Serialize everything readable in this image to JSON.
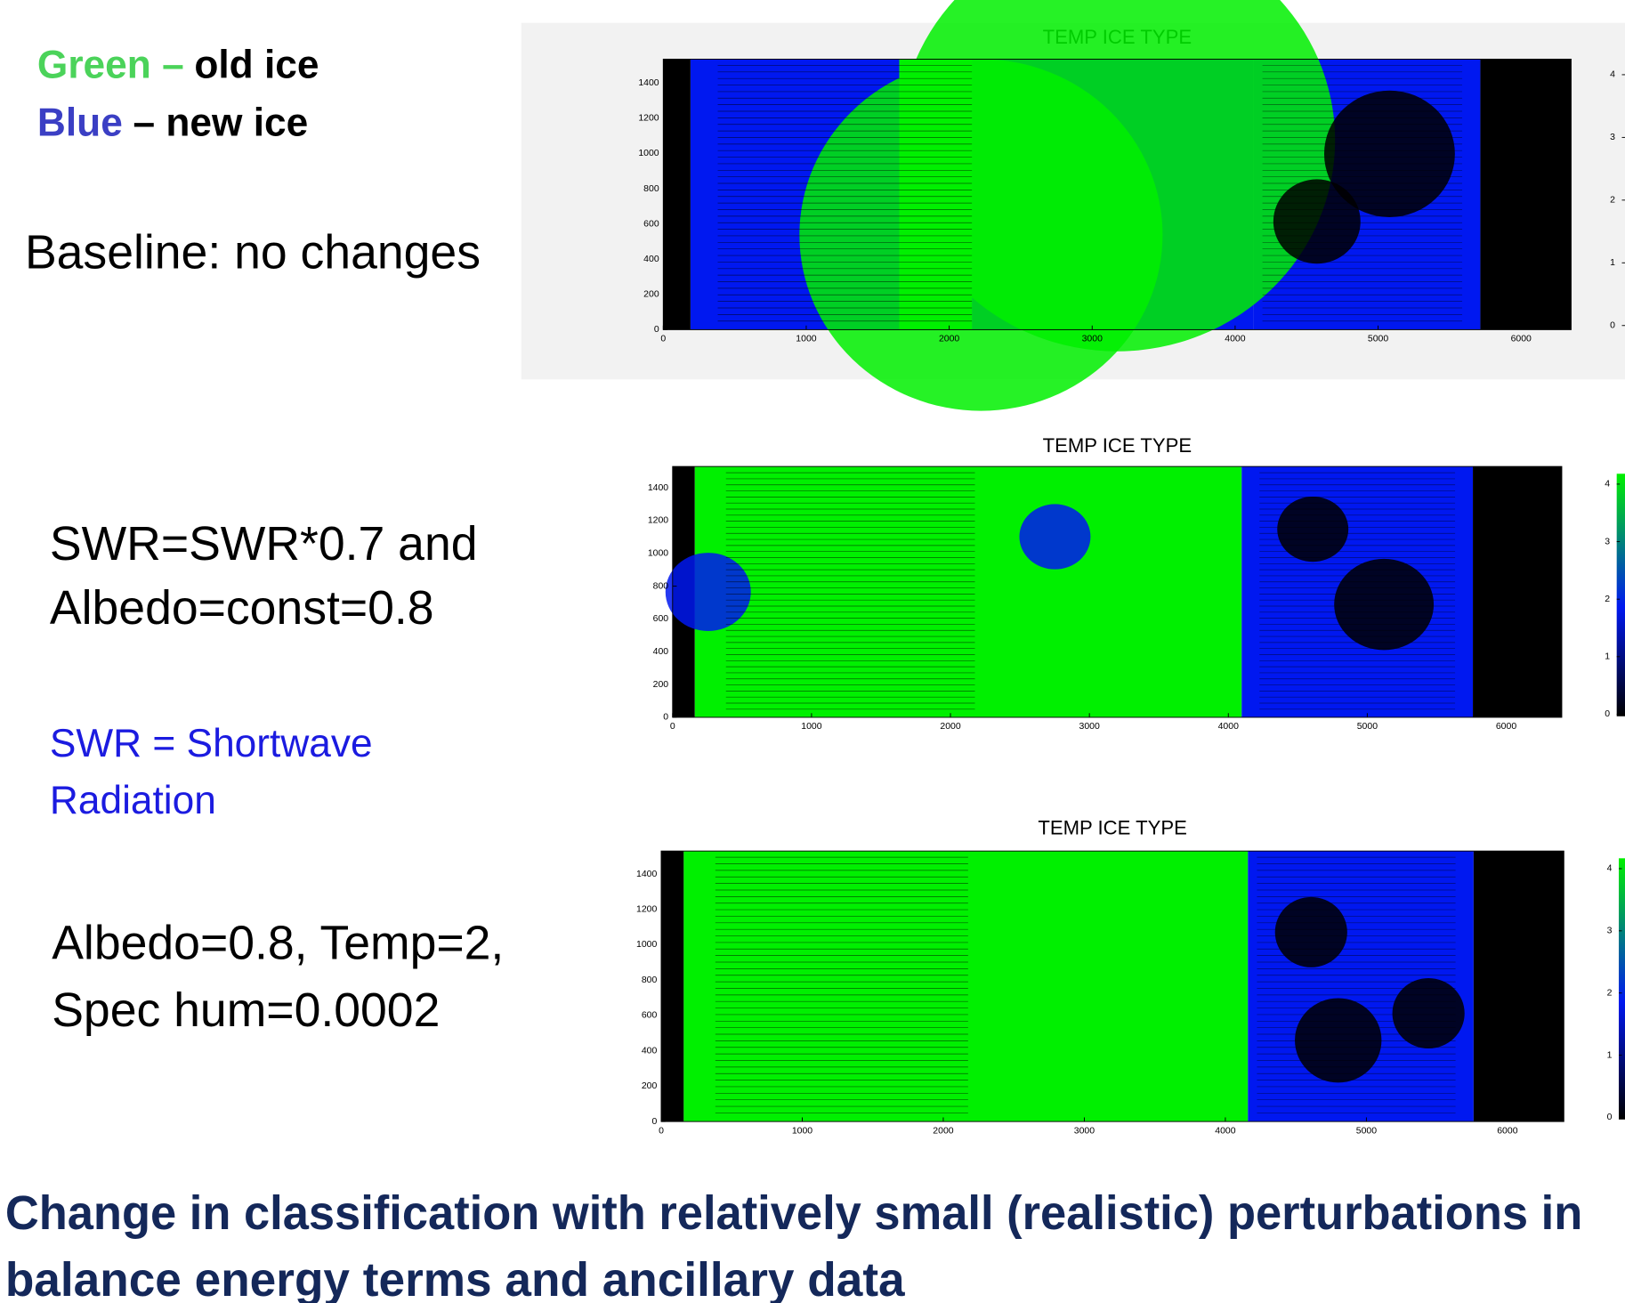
{
  "legend": {
    "green_label": "Green –",
    "green_text": "old ice",
    "blue_label": "Blue",
    "blue_text": "– new ice"
  },
  "captions": {
    "baseline": "Baseline: no changes",
    "swr_line1": "SWR=SWR*0.7 and",
    "swr_line2": "Albedo=const=0.8",
    "swr_note_line1": "SWR = Shortwave",
    "swr_note_line2": "Radiation",
    "albedo_line1": "Albedo=0.8, Temp=2,",
    "albedo_line2": "Spec hum=0.0002"
  },
  "conclusion": {
    "line1": "Change in classification with relatively small (realistic) perturbations in",
    "line2": "balance energy terms and  ancillary data"
  },
  "panels": [
    {
      "title": "TEMP ICE TYPE",
      "xlim": [
        0,
        6350
      ],
      "xticks": [
        0,
        1000,
        2000,
        3000,
        4000,
        5000,
        6000
      ],
      "ylim": [
        0,
        1535
      ],
      "yticks": [
        0,
        200,
        400,
        600,
        800,
        1000,
        1200,
        1400
      ],
      "colorbar_lim": [
        0,
        4
      ],
      "colorbar_ticks": [
        0,
        1,
        2,
        3,
        4
      ]
    },
    {
      "title": "TEMP ICE TYPE",
      "xlim": [
        0,
        6400
      ],
      "xticks": [
        0,
        1000,
        2000,
        3000,
        4000,
        5000,
        6000
      ],
      "ylim": [
        0,
        1530
      ],
      "yticks": [
        0,
        200,
        400,
        600,
        800,
        1000,
        1200,
        1400
      ],
      "colorbar_lim": [
        0,
        4
      ],
      "colorbar_ticks": [
        0,
        1,
        2,
        3,
        4
      ]
    },
    {
      "title": "TEMP ICE TYPE",
      "xlim": [
        0,
        6400
      ],
      "xticks": [
        0,
        1000,
        2000,
        3000,
        4000,
        5000,
        6000
      ],
      "ylim": [
        0,
        1530
      ],
      "yticks": [
        0,
        200,
        400,
        600,
        800,
        1000,
        1200,
        1400
      ],
      "colorbar_lim": [
        0,
        4
      ],
      "colorbar_ticks": [
        0,
        1,
        2,
        3,
        4
      ]
    }
  ]
}
